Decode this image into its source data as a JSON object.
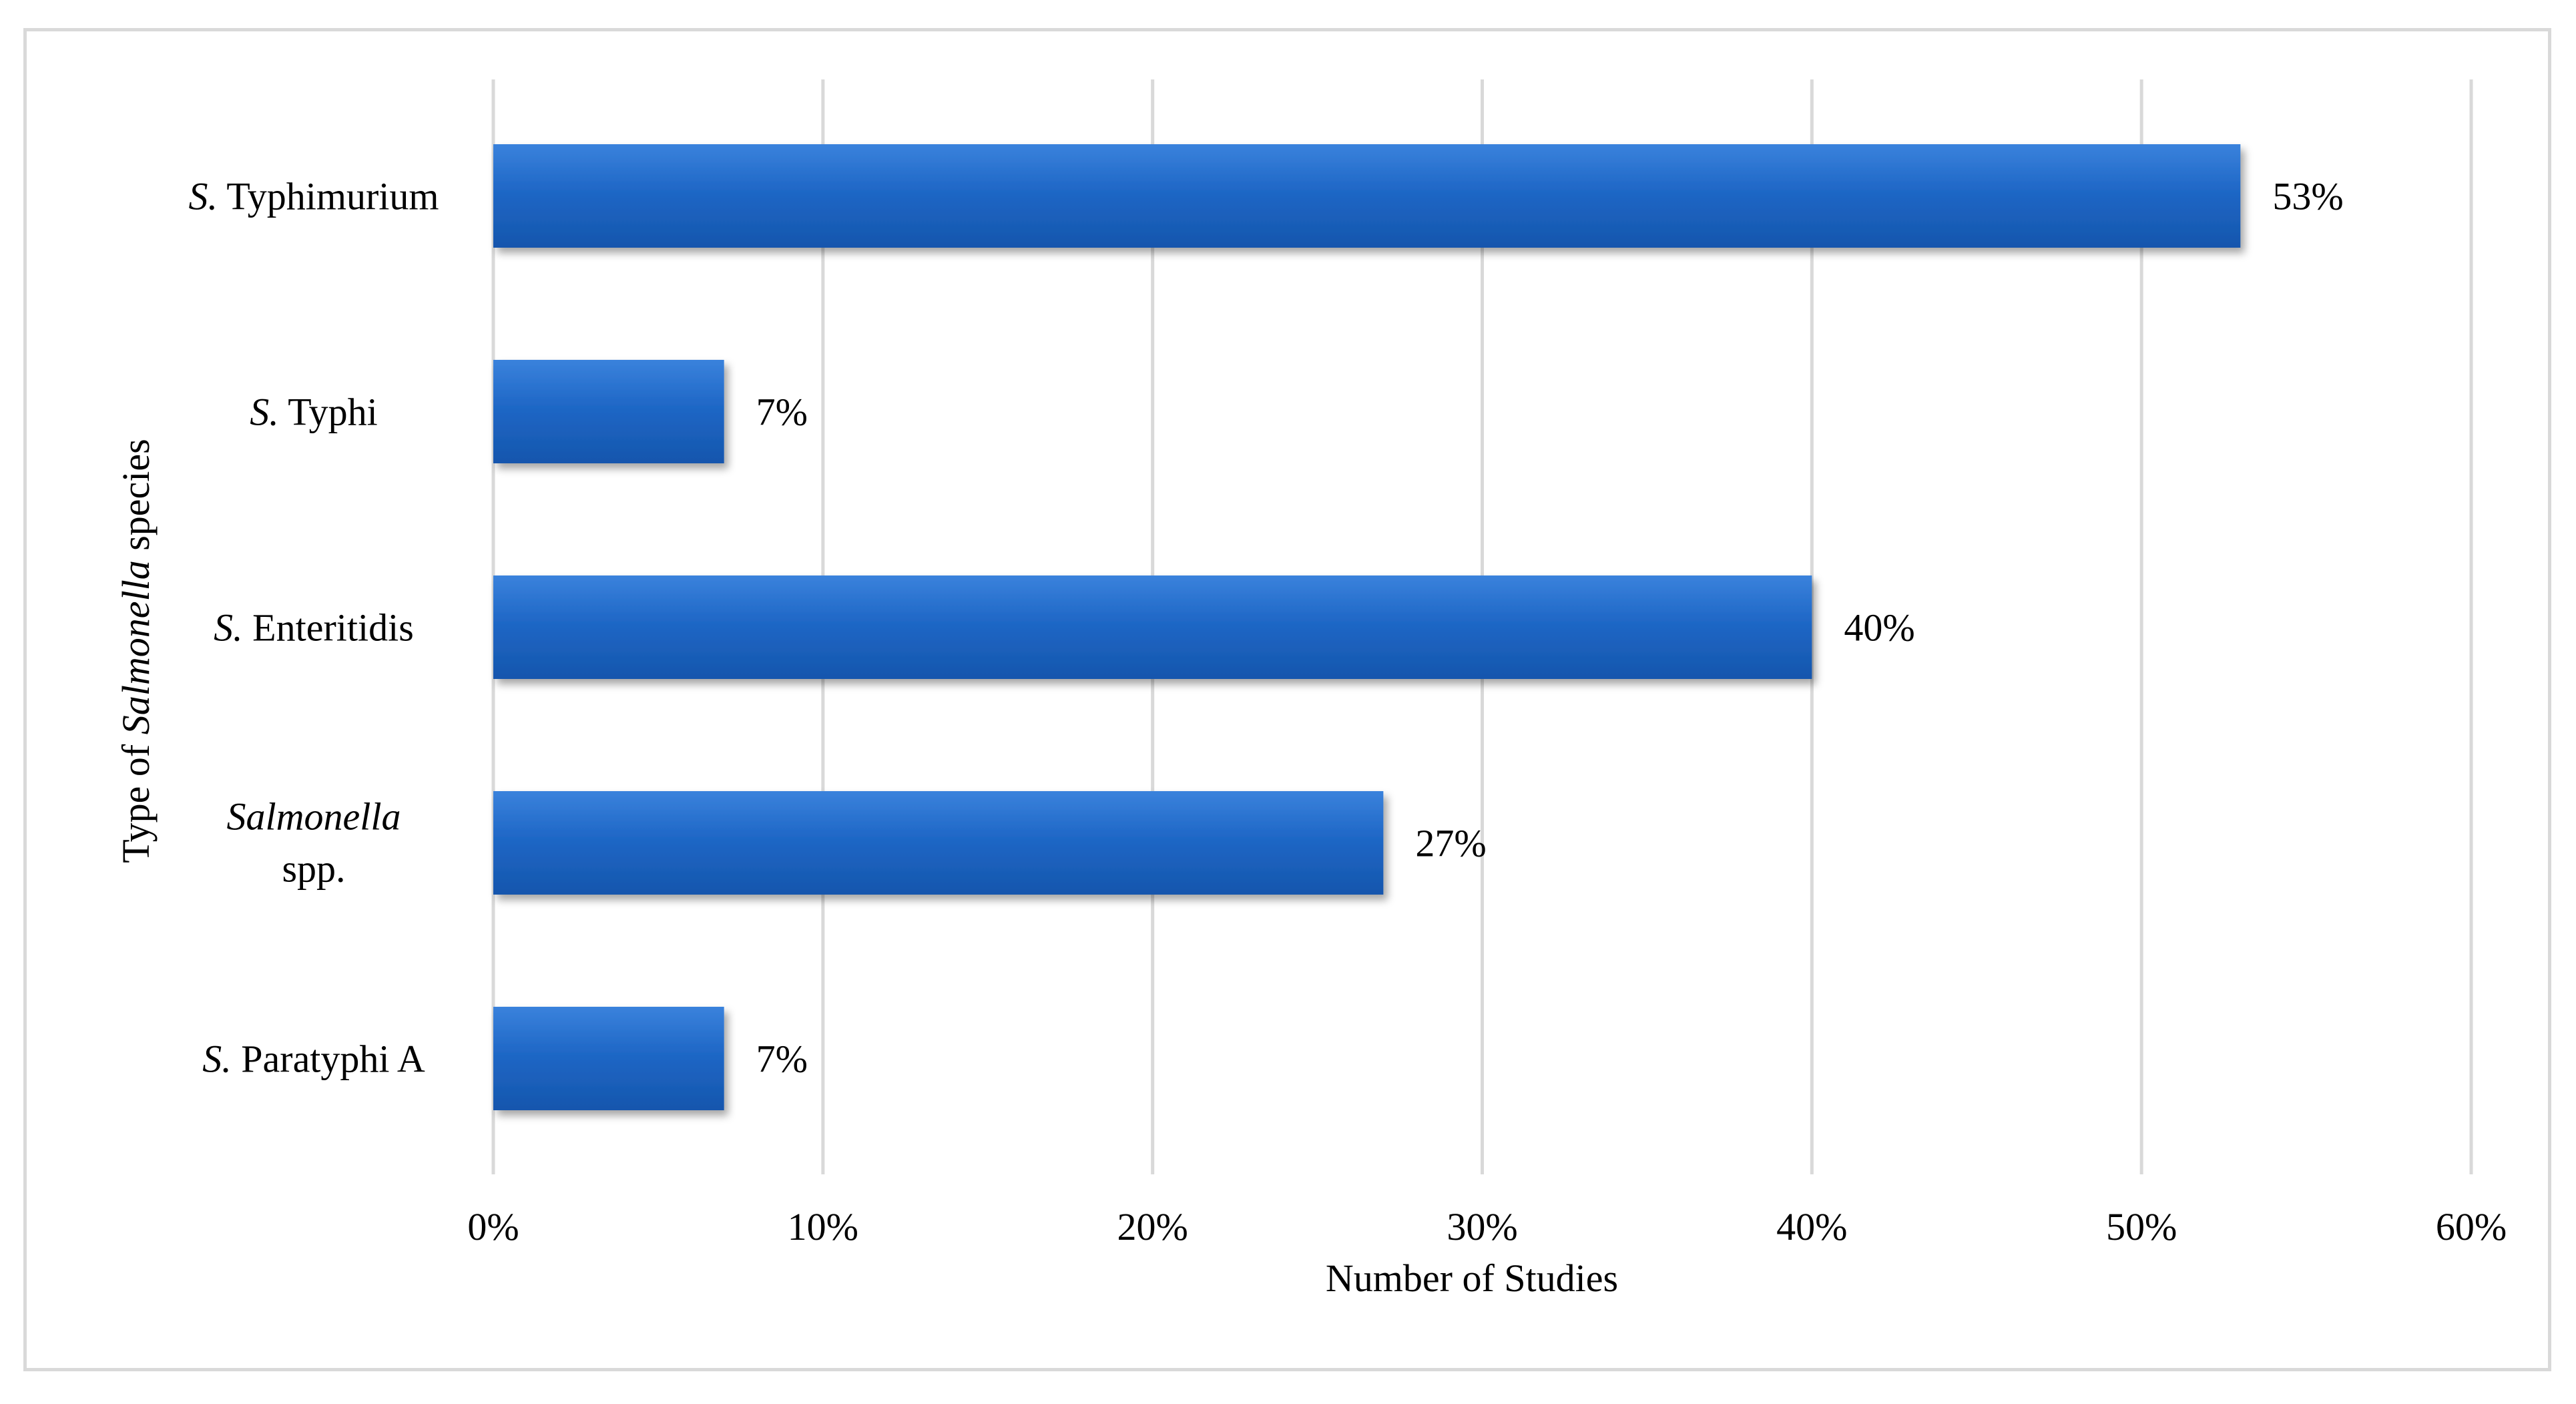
{
  "chart_data": {
    "type": "bar",
    "orientation": "horizontal",
    "categories": [
      {
        "italic": "S.",
        "rest": " Typhimurium"
      },
      {
        "italic": "S.",
        "rest": " Typhi"
      },
      {
        "italic": "S.",
        "rest": " Enteritidis"
      },
      {
        "italic": "Salmonella",
        "rest": "spp."
      },
      {
        "italic": "S.",
        "rest": " Paratyphi  A"
      }
    ],
    "values": [
      53,
      7,
      40,
      27,
      7
    ],
    "data_labels": [
      "53%",
      "7%",
      "40%",
      "27%",
      "7%"
    ],
    "xlim": [
      0,
      60
    ],
    "x_ticks": [
      0,
      10,
      20,
      30,
      40,
      50,
      60
    ],
    "x_tick_labels": [
      "0%",
      "10%",
      "20%",
      "30%",
      "40%",
      "50%",
      "60%"
    ],
    "xlabel": "Number of Studies",
    "ylabel": {
      "prefix": "Type of ",
      "italic": "Salmonella",
      "suffix": " species"
    },
    "grid": "vertical",
    "legend": "none",
    "bar_color": "#1f67c6",
    "bar_color_light": "#3a82dc",
    "bar_color_dark": "#1556ad"
  }
}
